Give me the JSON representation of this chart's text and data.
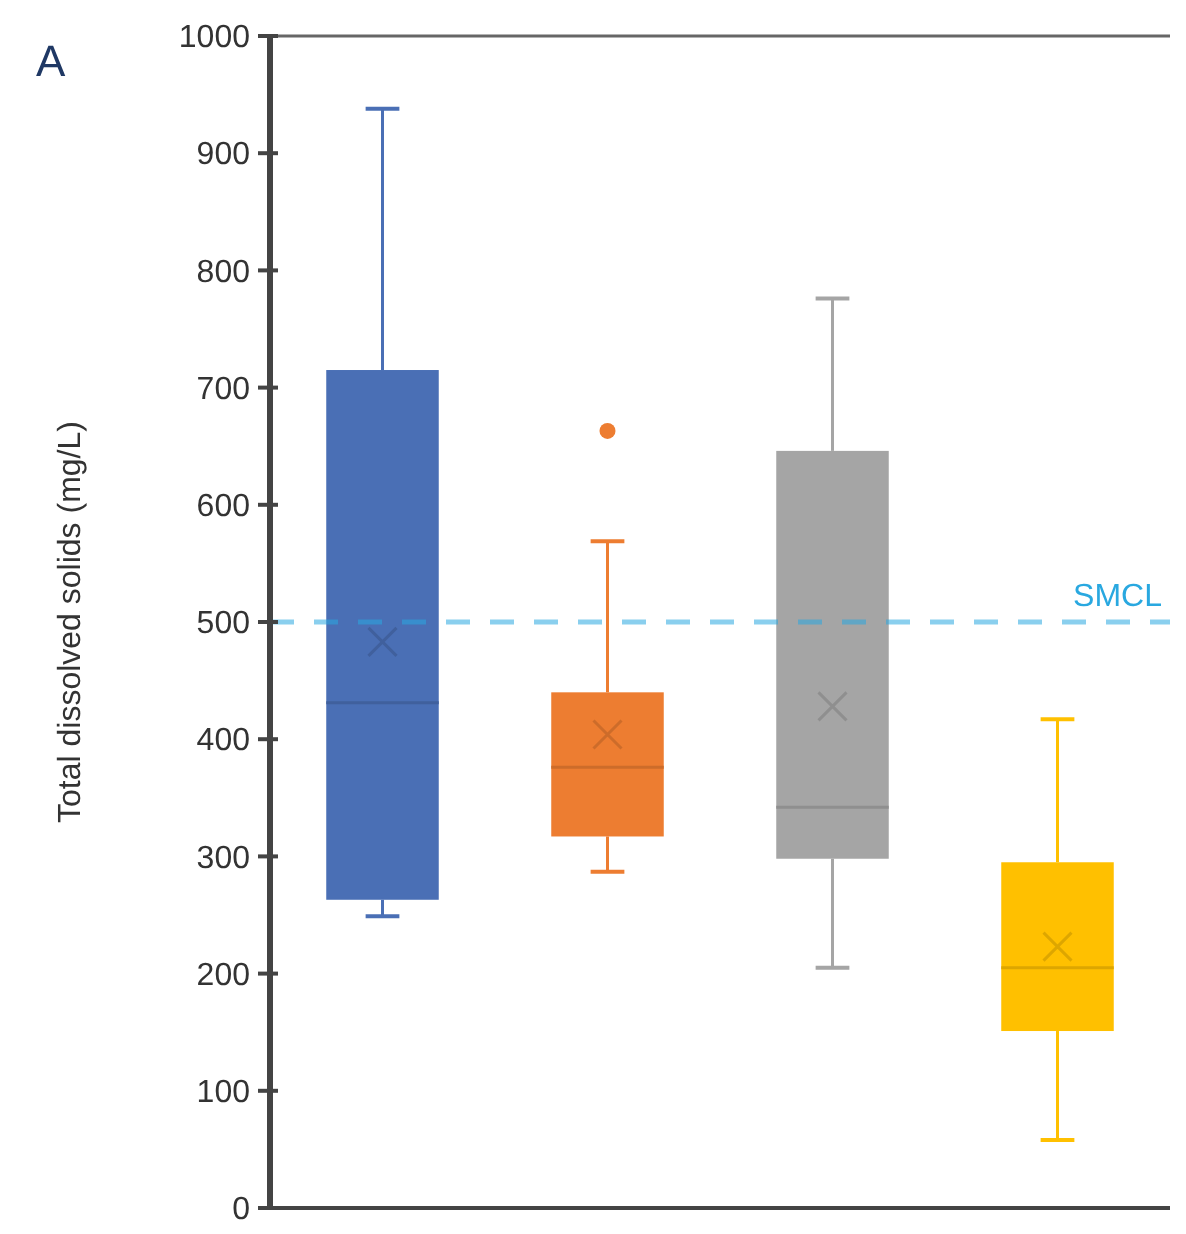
{
  "chart_data": {
    "type": "box",
    "title": "A",
    "ylabel": "Total dissolved solids (mg/L)",
    "categories": [
      null,
      null,
      null,
      null
    ],
    "colors": [
      "#4a6fb5",
      "#ed7d31",
      "#a5a5a5",
      "#ffc000"
    ],
    "boxes": [
      {
        "low": 249,
        "q1": 263,
        "median": 431,
        "q3": 715,
        "high": 938,
        "mean": 483
      },
      {
        "low": 287,
        "q1": 317,
        "median": 376,
        "q3": 440,
        "high": 569,
        "mean": 404,
        "outliers": [
          663
        ]
      },
      {
        "low": 205,
        "q1": 298,
        "median": 342,
        "q3": 646,
        "high": 776,
        "mean": 428
      },
      {
        "low": 58,
        "q1": 151,
        "median": 205,
        "q3": 295,
        "high": 417,
        "mean": 223
      }
    ],
    "ylim": [
      0,
      1000
    ],
    "yticks": [
      0,
      100,
      200,
      300,
      400,
      500,
      600,
      700,
      800,
      900,
      1000
    ],
    "ref_lines": [
      {
        "axis": "y",
        "value": 500,
        "label": "SMCL",
        "color": "#29a8e0",
        "line_style": "dashed"
      }
    ],
    "grid": false
  }
}
